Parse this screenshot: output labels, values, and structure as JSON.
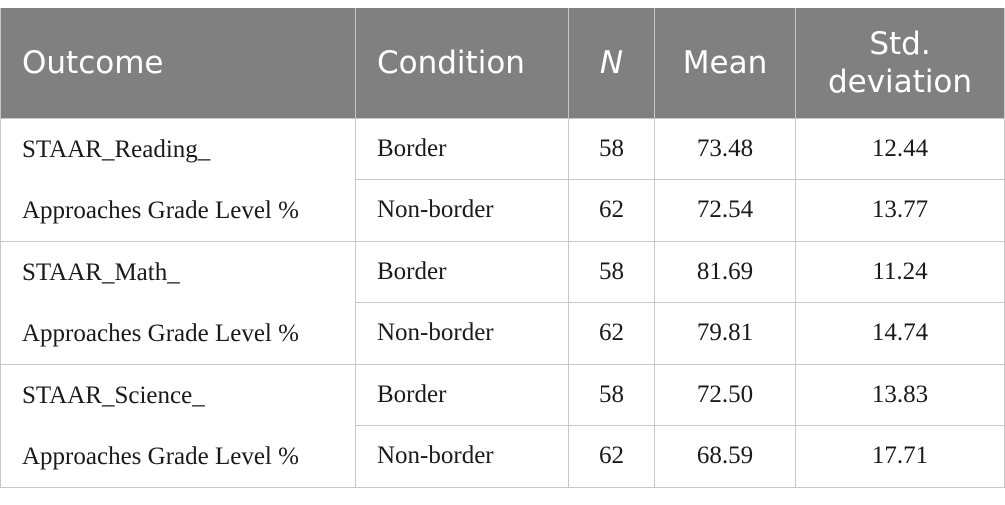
{
  "headers": {
    "outcome": "Outcome",
    "condition": "Condition",
    "n": "N",
    "mean": "Mean",
    "sd_line1": "Std.",
    "sd_line2": "deviation"
  },
  "groups": [
    {
      "outcome_line1": "STAAR_Reading_",
      "outcome_line2": "Approaches Grade Level %",
      "rows": [
        {
          "condition": "Border",
          "n": "58",
          "mean": "73.48",
          "sd": "12.44"
        },
        {
          "condition": "Non-border",
          "n": "62",
          "mean": "72.54",
          "sd": "13.77"
        }
      ]
    },
    {
      "outcome_line1": "STAAR_Math_",
      "outcome_line2": "Approaches Grade Level %",
      "rows": [
        {
          "condition": "Border",
          "n": "58",
          "mean": "81.69",
          "sd": "11.24"
        },
        {
          "condition": "Non-border",
          "n": "62",
          "mean": "79.81",
          "sd": "14.74"
        }
      ]
    },
    {
      "outcome_line1": "STAAR_Science_",
      "outcome_line2": "Approaches Grade Level %",
      "rows": [
        {
          "condition": "Border",
          "n": "58",
          "mean": "72.50",
          "sd": "13.83"
        },
        {
          "condition": "Non-border",
          "n": "62",
          "mean": "68.59",
          "sd": "17.71"
        }
      ]
    }
  ],
  "colors": {
    "header_bg": "#808080",
    "header_text": "#ffffff",
    "grid_line": "#c8c8c8",
    "body_text": "#1a1a1a"
  }
}
